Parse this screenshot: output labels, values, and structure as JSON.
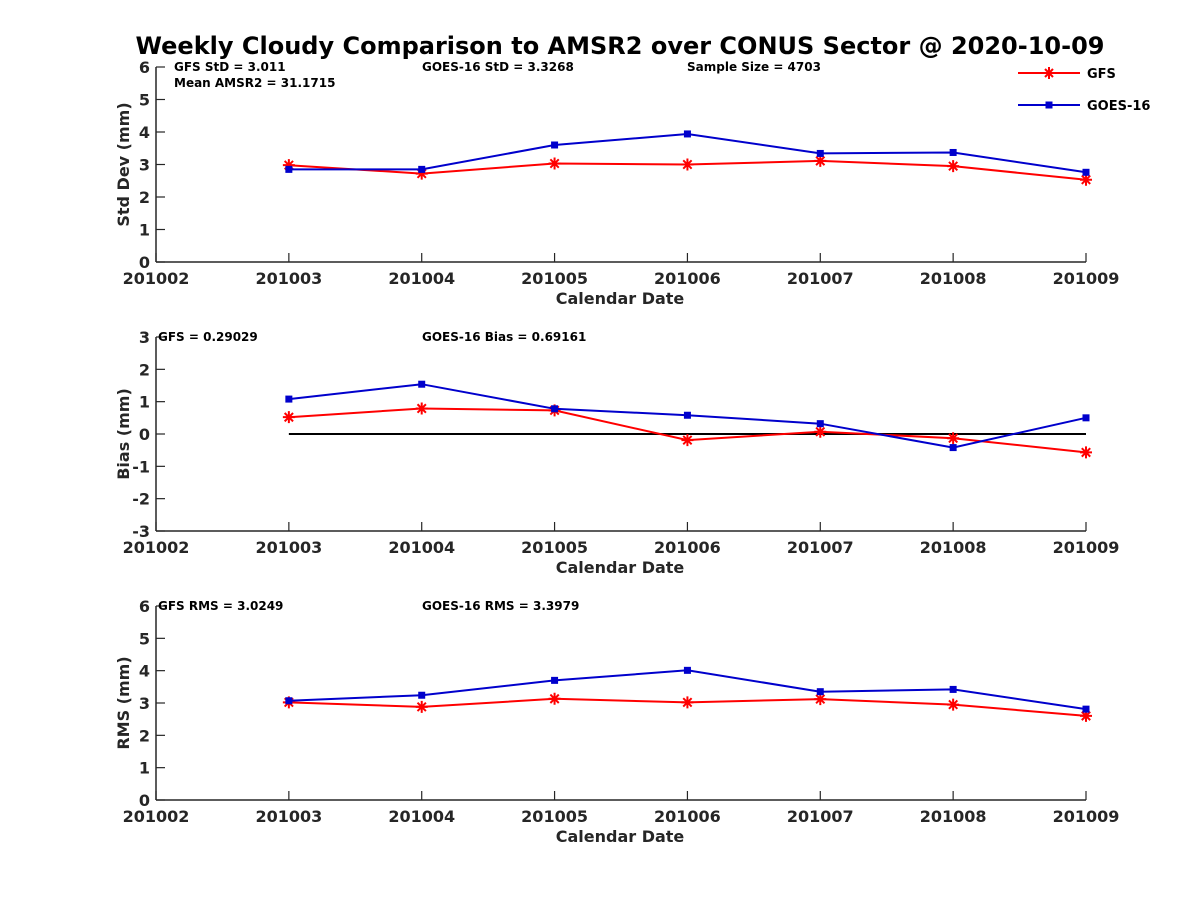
{
  "title": "Weekly Cloudy Comparison to AMSR2 over CONUS Sector @ 2020-10-09",
  "legend": {
    "position": "top-right",
    "entries": [
      {
        "label": "GFS",
        "color": "#ff0000",
        "marker": "asterisk"
      },
      {
        "label": "GOES-16",
        "color": "#0000cc",
        "marker": "square"
      }
    ]
  },
  "chart_data": [
    {
      "type": "line",
      "xlabel": "Calendar Date",
      "ylabel": "Std Dev (mm)",
      "x_ticks": [
        "201002",
        "201003",
        "201004",
        "201005",
        "201006",
        "201007",
        "201008",
        "201009"
      ],
      "x": [
        "201003",
        "201004",
        "201005",
        "201006",
        "201007",
        "201008",
        "201009"
      ],
      "ylim": [
        0,
        6
      ],
      "yticks": [
        0,
        1,
        2,
        3,
        4,
        5,
        6
      ],
      "annotations": [
        "GFS StD = 3.011",
        "Mean AMSR2 = 31.1715",
        "GOES-16 StD = 3.3268",
        "Sample Size = 4703"
      ],
      "zero_line": false,
      "series": [
        {
          "name": "GFS",
          "color": "#ff0000",
          "marker": "asterisk",
          "values": [
            2.98,
            2.72,
            3.03,
            3.0,
            3.11,
            2.95,
            2.53
          ]
        },
        {
          "name": "GOES-16",
          "color": "#0000cc",
          "marker": "square",
          "values": [
            2.85,
            2.85,
            3.6,
            3.94,
            3.34,
            3.37,
            2.76
          ]
        }
      ]
    },
    {
      "type": "line",
      "xlabel": "Calendar Date",
      "ylabel": "Bias (mm)",
      "x_ticks": [
        "201002",
        "201003",
        "201004",
        "201005",
        "201006",
        "201007",
        "201008",
        "201009"
      ],
      "x": [
        "201003",
        "201004",
        "201005",
        "201006",
        "201007",
        "201008",
        "201009"
      ],
      "ylim": [
        -3,
        3
      ],
      "yticks": [
        -3,
        -2,
        -1,
        0,
        1,
        2,
        3
      ],
      "annotations": [
        "GFS = 0.29029",
        "GOES-16 Bias  = 0.69161"
      ],
      "zero_line": true,
      "series": [
        {
          "name": "GFS",
          "color": "#ff0000",
          "marker": "asterisk",
          "values": [
            0.52,
            0.79,
            0.73,
            -0.19,
            0.07,
            -0.13,
            -0.57
          ]
        },
        {
          "name": "GOES-16",
          "color": "#0000cc",
          "marker": "square",
          "values": [
            1.08,
            1.54,
            0.78,
            0.58,
            0.32,
            -0.42,
            0.5
          ]
        }
      ]
    },
    {
      "type": "line",
      "xlabel": "Calendar Date",
      "ylabel": "RMS (mm)",
      "x_ticks": [
        "201002",
        "201003",
        "201004",
        "201005",
        "201006",
        "201007",
        "201008",
        "201009"
      ],
      "x": [
        "201003",
        "201004",
        "201005",
        "201006",
        "201007",
        "201008",
        "201009"
      ],
      "ylim": [
        0,
        6
      ],
      "yticks": [
        0,
        1,
        2,
        3,
        4,
        5,
        6
      ],
      "annotations": [
        "GFS RMS = 3.0249",
        "GOES-16 RMS = 3.3979"
      ],
      "zero_line": false,
      "series": [
        {
          "name": "GFS",
          "color": "#ff0000",
          "marker": "asterisk",
          "values": [
            3.02,
            2.88,
            3.13,
            3.02,
            3.12,
            2.95,
            2.6
          ]
        },
        {
          "name": "GOES-16",
          "color": "#0000cc",
          "marker": "square",
          "values": [
            3.07,
            3.24,
            3.7,
            4.01,
            3.35,
            3.42,
            2.81
          ]
        }
      ]
    }
  ]
}
